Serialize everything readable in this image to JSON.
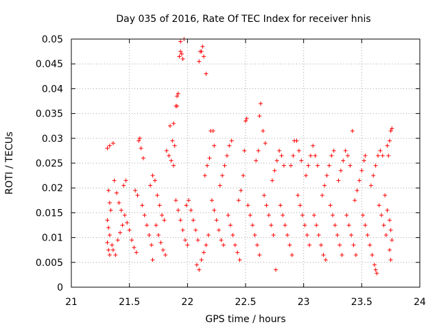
{
  "chart_data": {
    "type": "scatter",
    "title": "Day 035 of 2016, Rate Of TEC Index for receiver hnis",
    "xlabel": "GPS time / hours",
    "ylabel": "ROTI / TECUs",
    "xlim": [
      21,
      24
    ],
    "ylim": [
      0,
      0.05
    ],
    "x_ticks": [
      21,
      21.5,
      22,
      22.5,
      23,
      23.5,
      24
    ],
    "x_tick_labels": [
      "21",
      "21.5",
      "22",
      "22.5",
      "23",
      "23.5",
      "24"
    ],
    "y_ticks": [
      0,
      0.005,
      0.01,
      0.015,
      0.02,
      0.025,
      0.03,
      0.035,
      0.04,
      0.045,
      0.05
    ],
    "y_tick_labels": [
      "0",
      "0.005",
      "0.01",
      "0.015",
      "0.02",
      "0.025",
      "0.03",
      "0.035",
      "0.04",
      "0.045",
      "0.05"
    ],
    "grid": true,
    "marker": "+",
    "color": "#ff0000",
    "series": [
      {
        "name": "ROTI",
        "points": [
          [
            21.31,
            0.028
          ],
          [
            21.33,
            0.0285
          ],
          [
            21.36,
            0.029
          ],
          [
            21.32,
            0.0195
          ],
          [
            21.33,
            0.017
          ],
          [
            21.34,
            0.0155
          ],
          [
            21.31,
            0.0135
          ],
          [
            21.32,
            0.012
          ],
          [
            21.33,
            0.0105
          ],
          [
            21.31,
            0.009
          ],
          [
            21.32,
            0.0075
          ],
          [
            21.33,
            0.0065
          ],
          [
            21.35,
            0.0085
          ],
          [
            21.36,
            0.0075
          ],
          [
            21.38,
            0.0065
          ],
          [
            21.4,
            0.0095
          ],
          [
            21.42,
            0.011
          ],
          [
            21.44,
            0.0125
          ],
          [
            21.37,
            0.0215
          ],
          [
            21.39,
            0.019
          ],
          [
            21.41,
            0.017
          ],
          [
            21.43,
            0.0155
          ],
          [
            21.45,
            0.0205
          ],
          [
            21.47,
            0.0215
          ],
          [
            21.46,
            0.0145
          ],
          [
            21.48,
            0.013
          ],
          [
            21.5,
            0.0115
          ],
          [
            21.52,
            0.0095
          ],
          [
            21.54,
            0.008
          ],
          [
            21.56,
            0.007
          ],
          [
            21.55,
            0.0195
          ],
          [
            21.57,
            0.0185
          ],
          [
            21.58,
            0.0295
          ],
          [
            21.59,
            0.03
          ],
          [
            21.6,
            0.028
          ],
          [
            21.62,
            0.026
          ],
          [
            21.61,
            0.0165
          ],
          [
            21.63,
            0.0145
          ],
          [
            21.65,
            0.0125
          ],
          [
            21.67,
            0.0105
          ],
          [
            21.69,
            0.0085
          ],
          [
            21.7,
            0.0055
          ],
          [
            21.68,
            0.0205
          ],
          [
            21.7,
            0.0225
          ],
          [
            21.72,
            0.0215
          ],
          [
            21.74,
            0.0185
          ],
          [
            21.76,
            0.0165
          ],
          [
            21.78,
            0.0145
          ],
          [
            21.73,
            0.0125
          ],
          [
            21.75,
            0.0105
          ],
          [
            21.77,
            0.009
          ],
          [
            21.79,
            0.0075
          ],
          [
            21.81,
            0.0065
          ],
          [
            21.8,
            0.0135
          ],
          [
            21.82,
            0.0275
          ],
          [
            21.84,
            0.0265
          ],
          [
            21.86,
            0.0255
          ],
          [
            21.87,
            0.0295
          ],
          [
            21.89,
            0.0285
          ],
          [
            21.88,
            0.0245
          ],
          [
            21.85,
            0.0325
          ],
          [
            21.88,
            0.033
          ],
          [
            21.9,
            0.0365
          ],
          [
            21.91,
            0.0385
          ],
          [
            21.92,
            0.039
          ],
          [
            21.93,
            0.0465
          ],
          [
            21.94,
            0.0475
          ],
          [
            21.95,
            0.047
          ],
          [
            21.96,
            0.046
          ],
          [
            21.94,
            0.0495
          ],
          [
            21.97,
            0.05
          ],
          [
            21.91,
            0.0365
          ],
          [
            21.9,
            0.0175
          ],
          [
            21.92,
            0.0155
          ],
          [
            21.94,
            0.0135
          ],
          [
            21.96,
            0.0115
          ],
          [
            21.98,
            0.0095
          ],
          [
            22.0,
            0.0085
          ],
          [
            21.99,
            0.0165
          ],
          [
            22.01,
            0.0175
          ],
          [
            22.03,
            0.0155
          ],
          [
            22.05,
            0.0135
          ],
          [
            22.07,
            0.0115
          ],
          [
            22.09,
            0.0095
          ],
          [
            22.1,
            0.0455
          ],
          [
            22.12,
            0.0475
          ],
          [
            22.13,
            0.0485
          ],
          [
            22.14,
            0.0465
          ],
          [
            22.16,
            0.043
          ],
          [
            22.11,
            0.0475
          ],
          [
            22.08,
            0.0045
          ],
          [
            22.1,
            0.0035
          ],
          [
            22.12,
            0.0055
          ],
          [
            22.14,
            0.007
          ],
          [
            22.16,
            0.0085
          ],
          [
            22.18,
            0.0105
          ],
          [
            22.15,
            0.0225
          ],
          [
            22.17,
            0.0245
          ],
          [
            22.19,
            0.026
          ],
          [
            22.2,
            0.0315
          ],
          [
            22.22,
            0.0315
          ],
          [
            22.23,
            0.0285
          ],
          [
            22.21,
            0.0175
          ],
          [
            22.23,
            0.0155
          ],
          [
            22.25,
            0.0135
          ],
          [
            22.27,
            0.0115
          ],
          [
            22.29,
            0.0095
          ],
          [
            22.31,
            0.0085
          ],
          [
            22.28,
            0.0205
          ],
          [
            22.3,
            0.0225
          ],
          [
            22.32,
            0.0245
          ],
          [
            22.34,
            0.0265
          ],
          [
            22.36,
            0.0285
          ],
          [
            22.38,
            0.0295
          ],
          [
            22.35,
            0.0145
          ],
          [
            22.37,
            0.0125
          ],
          [
            22.39,
            0.0105
          ],
          [
            22.41,
            0.0085
          ],
          [
            22.43,
            0.007
          ],
          [
            22.45,
            0.0055
          ],
          [
            22.44,
            0.0175
          ],
          [
            22.46,
            0.0195
          ],
          [
            22.48,
            0.0225
          ],
          [
            22.49,
            0.0275
          ],
          [
            22.5,
            0.0335
          ],
          [
            22.51,
            0.034
          ],
          [
            22.52,
            0.0165
          ],
          [
            22.54,
            0.0145
          ],
          [
            22.56,
            0.0125
          ],
          [
            22.58,
            0.0105
          ],
          [
            22.6,
            0.0085
          ],
          [
            22.62,
            0.0065
          ],
          [
            22.59,
            0.0255
          ],
          [
            22.61,
            0.0275
          ],
          [
            22.62,
            0.0345
          ],
          [
            22.63,
            0.037
          ],
          [
            22.65,
            0.0315
          ],
          [
            22.67,
            0.029
          ],
          [
            22.66,
            0.0185
          ],
          [
            22.68,
            0.0165
          ],
          [
            22.7,
            0.0145
          ],
          [
            22.72,
            0.0125
          ],
          [
            22.74,
            0.0105
          ],
          [
            22.76,
            0.0035
          ],
          [
            22.73,
            0.0215
          ],
          [
            22.75,
            0.0235
          ],
          [
            22.77,
            0.0255
          ],
          [
            22.79,
            0.0275
          ],
          [
            22.81,
            0.0265
          ],
          [
            22.83,
            0.0245
          ],
          [
            22.8,
            0.0165
          ],
          [
            22.82,
            0.0145
          ],
          [
            22.84,
            0.0125
          ],
          [
            22.86,
            0.0105
          ],
          [
            22.88,
            0.0085
          ],
          [
            22.9,
            0.0065
          ],
          [
            22.89,
            0.0245
          ],
          [
            22.91,
            0.0265
          ],
          [
            22.92,
            0.0295
          ],
          [
            22.94,
            0.0295
          ],
          [
            22.96,
            0.0275
          ],
          [
            22.98,
            0.0255
          ],
          [
            22.95,
            0.0185
          ],
          [
            22.97,
            0.0165
          ],
          [
            22.99,
            0.0145
          ],
          [
            23.01,
            0.0125
          ],
          [
            23.03,
            0.0105
          ],
          [
            23.05,
            0.0085
          ],
          [
            23.02,
            0.0225
          ],
          [
            23.04,
            0.0245
          ],
          [
            23.06,
            0.0265
          ],
          [
            23.08,
            0.0285
          ],
          [
            23.1,
            0.0265
          ],
          [
            23.12,
            0.0245
          ],
          [
            23.09,
            0.0145
          ],
          [
            23.11,
            0.0125
          ],
          [
            23.13,
            0.0105
          ],
          [
            23.15,
            0.0085
          ],
          [
            23.17,
            0.0065
          ],
          [
            23.19,
            0.0055
          ],
          [
            23.16,
            0.0185
          ],
          [
            23.18,
            0.0205
          ],
          [
            23.2,
            0.0225
          ],
          [
            23.22,
            0.0245
          ],
          [
            23.24,
            0.0265
          ],
          [
            23.26,
            0.0275
          ],
          [
            23.23,
            0.0165
          ],
          [
            23.25,
            0.0145
          ],
          [
            23.27,
            0.0125
          ],
          [
            23.29,
            0.0105
          ],
          [
            23.31,
            0.0085
          ],
          [
            23.33,
            0.0065
          ],
          [
            23.3,
            0.0215
          ],
          [
            23.32,
            0.0235
          ],
          [
            23.34,
            0.0255
          ],
          [
            23.36,
            0.0275
          ],
          [
            23.38,
            0.0265
          ],
          [
            23.4,
            0.0245
          ],
          [
            23.37,
            0.0145
          ],
          [
            23.39,
            0.0125
          ],
          [
            23.41,
            0.0105
          ],
          [
            23.43,
            0.0085
          ],
          [
            23.45,
            0.0065
          ],
          [
            23.42,
            0.0315
          ],
          [
            23.44,
            0.0175
          ],
          [
            23.46,
            0.0195
          ],
          [
            23.48,
            0.0215
          ],
          [
            23.5,
            0.0235
          ],
          [
            23.52,
            0.0255
          ],
          [
            23.53,
            0.0265
          ],
          [
            23.51,
            0.0145
          ],
          [
            23.53,
            0.0125
          ],
          [
            23.55,
            0.0105
          ],
          [
            23.57,
            0.0085
          ],
          [
            23.59,
            0.0065
          ],
          [
            23.61,
            0.0045
          ],
          [
            23.58,
            0.0205
          ],
          [
            23.6,
            0.0225
          ],
          [
            23.62,
            0.0245
          ],
          [
            23.64,
            0.0265
          ],
          [
            23.66,
            0.0275
          ],
          [
            23.68,
            0.0265
          ],
          [
            23.62,
            0.0035
          ],
          [
            23.63,
            0.0028
          ],
          [
            23.65,
            0.0165
          ],
          [
            23.67,
            0.0145
          ],
          [
            23.69,
            0.0125
          ],
          [
            23.71,
            0.0105
          ],
          [
            23.7,
            0.0185
          ],
          [
            23.72,
            0.0285
          ],
          [
            23.74,
            0.0295
          ],
          [
            23.75,
            0.0315
          ],
          [
            23.76,
            0.032
          ],
          [
            23.73,
            0.0265
          ],
          [
            23.72,
            0.0155
          ],
          [
            23.74,
            0.0135
          ],
          [
            23.75,
            0.0115
          ],
          [
            23.76,
            0.0095
          ],
          [
            23.74,
            0.0075
          ],
          [
            23.75,
            0.0055
          ]
        ]
      }
    ]
  }
}
